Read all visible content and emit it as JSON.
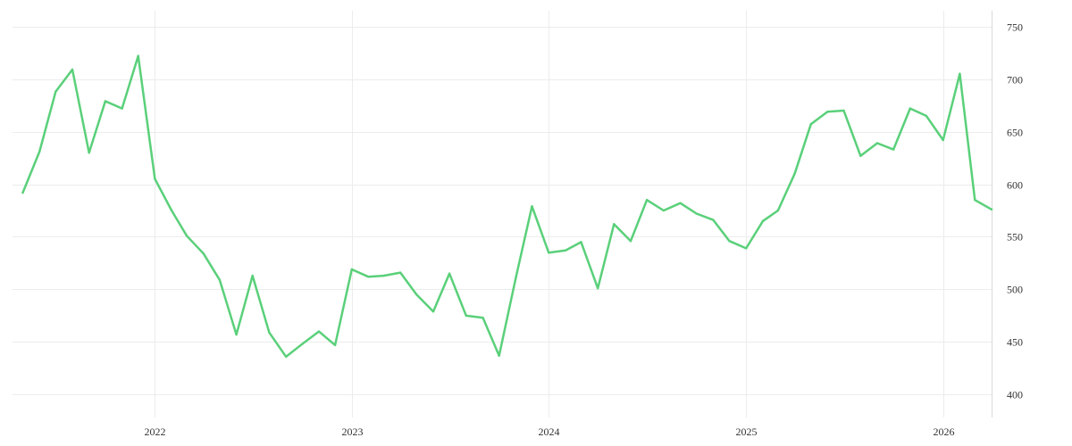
{
  "chart_data": {
    "type": "line",
    "title": "",
    "xlabel": "",
    "ylabel": "",
    "grid": true,
    "legend": "none",
    "xlim": [
      "2021-04-12",
      "2026-04-01"
    ],
    "ylim": [
      385,
      765
    ],
    "y_axis_position": "right",
    "x_ticks": [
      {
        "date": "2022-01-01",
        "label": "2022"
      },
      {
        "date": "2023-01-01",
        "label": "2023"
      },
      {
        "date": "2024-01-01",
        "label": "2024"
      },
      {
        "date": "2025-01-01",
        "label": "2025"
      },
      {
        "date": "2026-01-01",
        "label": "2026"
      }
    ],
    "y_ticks": [
      {
        "value": 400,
        "label": "400"
      },
      {
        "value": 450,
        "label": "450"
      },
      {
        "value": 500,
        "label": "500"
      },
      {
        "value": 550,
        "label": "550"
      },
      {
        "value": 600,
        "label": "600"
      },
      {
        "value": 650,
        "label": "650"
      },
      {
        "value": 700,
        "label": "700"
      },
      {
        "value": 750,
        "label": "750"
      }
    ],
    "series": [
      {
        "color": "#5ad07a",
        "x": [
          "2021-05-01",
          "2021-06-01",
          "2021-07-01",
          "2021-08-01",
          "2021-09-01",
          "2021-10-01",
          "2021-11-01",
          "2021-12-01",
          "2022-01-01",
          "2022-02-01",
          "2022-03-01",
          "2022-04-01",
          "2022-05-01",
          "2022-06-01",
          "2022-07-01",
          "2022-08-01",
          "2022-09-01",
          "2022-10-01",
          "2022-11-01",
          "2022-12-01",
          "2023-01-01",
          "2023-02-01",
          "2023-03-01",
          "2023-04-01",
          "2023-05-01",
          "2023-06-01",
          "2023-07-01",
          "2023-08-01",
          "2023-09-01",
          "2023-10-01",
          "2023-11-01",
          "2023-12-01",
          "2024-01-01",
          "2024-02-01",
          "2024-03-01",
          "2024-04-01",
          "2024-05-01",
          "2024-06-01",
          "2024-07-01",
          "2024-08-01",
          "2024-09-01",
          "2024-10-01",
          "2024-11-01",
          "2024-12-01",
          "2025-01-01",
          "2025-02-01",
          "2025-03-01",
          "2025-04-01",
          "2025-05-01",
          "2025-06-01",
          "2025-07-01",
          "2025-08-01",
          "2025-09-01",
          "2025-10-01",
          "2025-11-01",
          "2025-12-01",
          "2026-01-01",
          "2026-02-01",
          "2026-03-01",
          "2026-04-01"
        ],
        "values": [
          592,
          631,
          688,
          709,
          630,
          679,
          672,
          722,
          605,
          575,
          551,
          534,
          509,
          457,
          513,
          459,
          436,
          448,
          460,
          447,
          519,
          512,
          513,
          516,
          495,
          479,
          515,
          475,
          473,
          437,
          511,
          579,
          535,
          537,
          545,
          501,
          562,
          546,
          585,
          575,
          582,
          572,
          566,
          546,
          539,
          565,
          575,
          610,
          657,
          669,
          670,
          627,
          639,
          633,
          672,
          665,
          642,
          705,
          585,
          576
        ]
      }
    ]
  }
}
